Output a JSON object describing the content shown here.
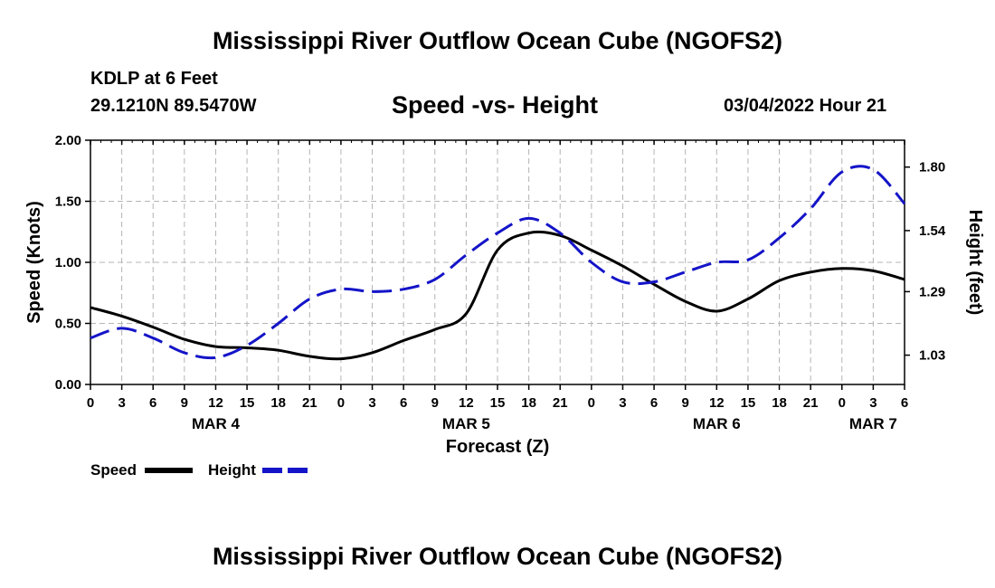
{
  "header": {
    "title": "Mississippi River Outflow Ocean Cube (NGOFS2)",
    "station": "KDLP at 6 Feet",
    "coords": "29.1210N  89.5470W",
    "subtitle": "Speed -vs- Height",
    "datetime": "03/04/2022 Hour 21"
  },
  "footer": {
    "title": "Mississippi River Outflow Ocean Cube (NGOFS2)"
  },
  "colors": {
    "speed": "#000000",
    "height": "#1414c8",
    "grid": "#b4b4b4"
  },
  "chart_data": {
    "type": "line",
    "xlabel": "Forecast (Z)",
    "ylabel": "Speed (Knots)",
    "y2label": "Height (feet)",
    "xlim": [
      0,
      78
    ],
    "ylim": [
      0,
      2
    ],
    "y2lim": [
      0.91,
      1.91
    ],
    "x_ticks": [
      0,
      3,
      6,
      9,
      12,
      15,
      18,
      21,
      24,
      27,
      30,
      33,
      36,
      39,
      42,
      45,
      48,
      51,
      54,
      57,
      60,
      63,
      66,
      69,
      72,
      75,
      78
    ],
    "x_tick_labels": [
      "0",
      "3",
      "6",
      "9",
      "12",
      "15",
      "18",
      "21",
      "0",
      "3",
      "6",
      "9",
      "12",
      "15",
      "18",
      "21",
      "0",
      "3",
      "6",
      "9",
      "12",
      "15",
      "18",
      "21",
      "0",
      "3",
      "6"
    ],
    "y_ticks": [
      0,
      0.5,
      1.0,
      1.5,
      2.0
    ],
    "y_tick_labels": [
      "0.00",
      "0.50",
      "1.00",
      "1.50",
      "2.00"
    ],
    "y2_ticks": [
      1.03,
      1.29,
      1.54,
      1.8
    ],
    "y2_tick_labels": [
      "1.03",
      "1.29",
      "1.54",
      "1.80"
    ],
    "day_labels": [
      {
        "x": 12,
        "label": "MAR 4"
      },
      {
        "x": 36,
        "label": "MAR 5"
      },
      {
        "x": 60,
        "label": "MAR 6"
      },
      {
        "x": 75,
        "label": "MAR 7"
      }
    ],
    "x": [
      0,
      3,
      6,
      9,
      12,
      15,
      18,
      21,
      24,
      27,
      30,
      33,
      36,
      39,
      42,
      45,
      48,
      51,
      54,
      57,
      60,
      63,
      66,
      69,
      72,
      75,
      78
    ],
    "series": [
      {
        "name": "Speed",
        "axis": "left",
        "style": "solid",
        "values": [
          0.63,
          0.56,
          0.47,
          0.37,
          0.31,
          0.3,
          0.28,
          0.23,
          0.21,
          0.26,
          0.36,
          0.45,
          0.58,
          1.1,
          1.24,
          1.22,
          1.1,
          0.97,
          0.82,
          0.68,
          0.6,
          0.7,
          0.85,
          0.92,
          0.95,
          0.93,
          0.86
        ]
      },
      {
        "name": "Height",
        "axis": "right",
        "style": "dashed",
        "values": [
          1.1,
          1.14,
          1.1,
          1.04,
          1.02,
          1.07,
          1.16,
          1.26,
          1.3,
          1.29,
          1.3,
          1.34,
          1.44,
          1.53,
          1.59,
          1.53,
          1.41,
          1.33,
          1.33,
          1.37,
          1.41,
          1.42,
          1.51,
          1.63,
          1.78,
          1.79,
          1.65
        ]
      }
    ],
    "legend": [
      {
        "label": "Speed",
        "style": "solid"
      },
      {
        "label": "Height",
        "style": "dashed"
      }
    ]
  }
}
